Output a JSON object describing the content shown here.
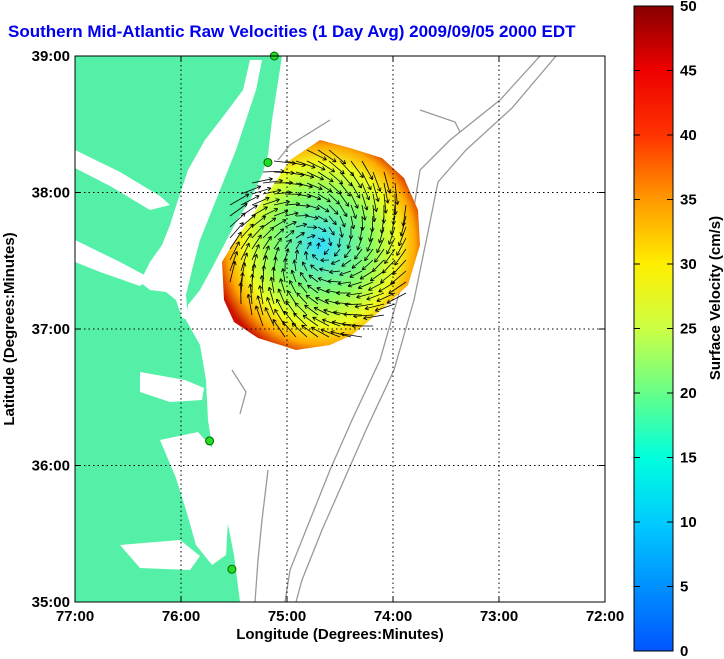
{
  "chart_data": {
    "type": "heatmap",
    "title": "Southern Mid-Atlantic Raw Velocities (1 Day Avg) 2009/09/05 2000 EDT",
    "xlabel": "Longitude (Degrees:Minutes)",
    "ylabel": "Latitude (Degrees:Minutes)",
    "x_ticks": [
      "77:00",
      "76:00",
      "75:00",
      "74:00",
      "73:00",
      "72:00"
    ],
    "y_ticks": [
      "39:00",
      "38:00",
      "37:00",
      "36:00",
      "35:00"
    ],
    "xlim": [
      -77,
      -72
    ],
    "ylim": [
      35,
      39
    ],
    "grid": true,
    "colorbar": {
      "label": "Surface Velocity (cm/s)",
      "range": [
        0,
        50
      ],
      "ticks": [
        "0",
        "5",
        "10",
        "15",
        "20",
        "25",
        "30",
        "35",
        "40",
        "45",
        "50"
      ]
    },
    "stations": [
      {
        "lon": -75.12,
        "lat": 39.0
      },
      {
        "lon": -75.18,
        "lat": 38.22
      },
      {
        "lon": -75.73,
        "lat": 36.18
      },
      {
        "lon": -75.52,
        "lat": 35.24
      }
    ],
    "colors": {
      "land": "#55f0a8",
      "title": "#0000ee",
      "bathymetry": "#999999"
    }
  }
}
